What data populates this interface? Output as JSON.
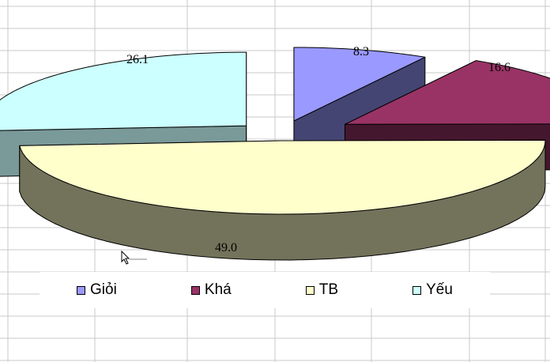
{
  "chart_data": {
    "type": "pie",
    "style": "3d-exploded",
    "categories": [
      "Giỏi",
      "Khá",
      "TB",
      "Yếu"
    ],
    "values": [
      8.3,
      16.6,
      49.0,
      26.1
    ],
    "data_labels": [
      "8.3",
      "16.6",
      "49.0",
      "26.1"
    ],
    "colors": {
      "Giỏi": "#9999FF",
      "Khá": "#993366",
      "TB": "#FFFFCC",
      "Yếu": "#CCFFFF"
    },
    "legend_position": "bottom",
    "grid": true
  }
}
